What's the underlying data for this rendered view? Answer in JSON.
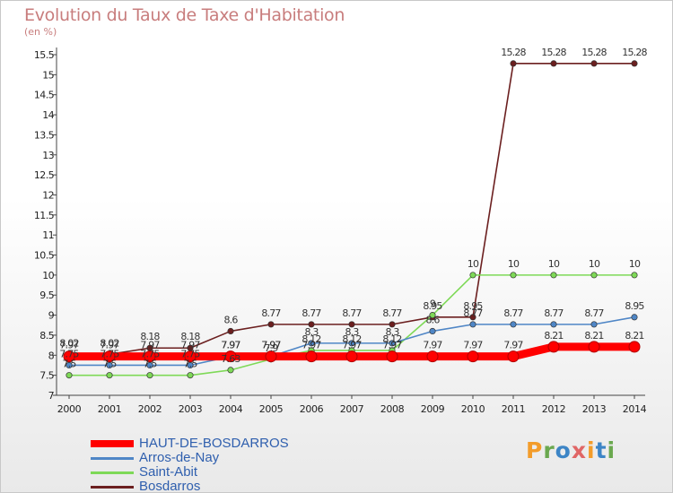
{
  "header": {
    "title": "Evolution du Taux de Taxe d'Habitation",
    "subtitle": "(en %)"
  },
  "logo": {
    "text": "Proxiti",
    "letters": [
      {
        "ch": "P",
        "color": "#f39c2a"
      },
      {
        "ch": "r",
        "color": "#6aa84f"
      },
      {
        "ch": "o",
        "color": "#3d85c6"
      },
      {
        "ch": "x",
        "color": "#e06666"
      },
      {
        "ch": "i",
        "color": "#f39c2a"
      },
      {
        "ch": "t",
        "color": "#3d85c6"
      },
      {
        "ch": "i",
        "color": "#6aa84f"
      }
    ]
  },
  "chart_data": {
    "type": "line",
    "title": "Evolution du Taux de Taxe d'Habitation",
    "ylabel": "(en %)",
    "xlabel": "",
    "x": [
      "2000",
      "2001",
      "2002",
      "2003",
      "2004",
      "2005",
      "2006",
      "2007",
      "2008",
      "2009",
      "2010",
      "2011",
      "2012",
      "2013",
      "2014"
    ],
    "ylim": [
      7,
      15.5
    ],
    "yticks": [
      7,
      7.5,
      8,
      8.5,
      9,
      9.5,
      10,
      10.5,
      11,
      11.5,
      12,
      12.5,
      13,
      13.5,
      14,
      14.5,
      15,
      15.5
    ],
    "legend_position": "bottom-left",
    "series": [
      {
        "name": "HAUT-DE-BOSDARROS",
        "color": "#ff0000",
        "values": [
          7.97,
          7.97,
          7.97,
          7.97,
          7.97,
          7.97,
          7.97,
          7.97,
          7.97,
          7.97,
          7.97,
          7.97,
          8.21,
          8.21,
          8.21
        ]
      },
      {
        "name": "Arros-de-Nay",
        "color": "#4f86c6",
        "values": [
          7.75,
          7.75,
          7.75,
          7.75,
          7.97,
          7.97,
          8.3,
          8.3,
          8.3,
          8.6,
          8.77,
          8.77,
          8.77,
          8.77,
          8.95
        ]
      },
      {
        "name": "Saint-Abit",
        "color": "#7ed957",
        "values": [
          7.5,
          7.5,
          7.5,
          7.5,
          7.63,
          7.9,
          8.12,
          8.12,
          8.12,
          9.0,
          10,
          10,
          10,
          10,
          10
        ]
      },
      {
        "name": "Bosdarros",
        "color": "#6b1f1f",
        "values": [
          8.02,
          8.02,
          8.18,
          8.18,
          8.6,
          8.77,
          8.77,
          8.77,
          8.77,
          8.95,
          8.95,
          15.28,
          15.28,
          15.28,
          15.28
        ]
      }
    ],
    "data_labels": [
      {
        "series": 0,
        "labels": [
          "7.97",
          "7.97",
          "7.97",
          "7.97",
          "7.97",
          "7.97",
          "7.97",
          "7.97",
          "7.97",
          "7.97",
          "7.97",
          "7.97",
          "8.21",
          "8.21",
          "8.21"
        ]
      },
      {
        "series": 1,
        "labels": [
          "7.75",
          "7.75",
          "7.75",
          "7.75",
          "7.97",
          "7.97",
          "8.3",
          "8.3",
          "8.3",
          "8.6",
          "8.77",
          "8.77",
          "8.77",
          "8.77",
          "8.95"
        ]
      },
      {
        "series": 2,
        "labels": [
          "7.5",
          "7.5",
          "7.5",
          "7.5",
          "7.63",
          "7.9",
          "8.12",
          "8.12",
          "8.12",
          "9",
          "10",
          "10",
          "10",
          "10",
          "10"
        ]
      },
      {
        "series": 3,
        "labels": [
          "8.02",
          "8.02",
          "8.18",
          "8.18",
          "8.6",
          "8.77",
          "8.77",
          "8.77",
          "8.77",
          "8.95",
          "8.95",
          "15.28",
          "15.28",
          "15.28",
          "15.28"
        ]
      }
    ]
  }
}
